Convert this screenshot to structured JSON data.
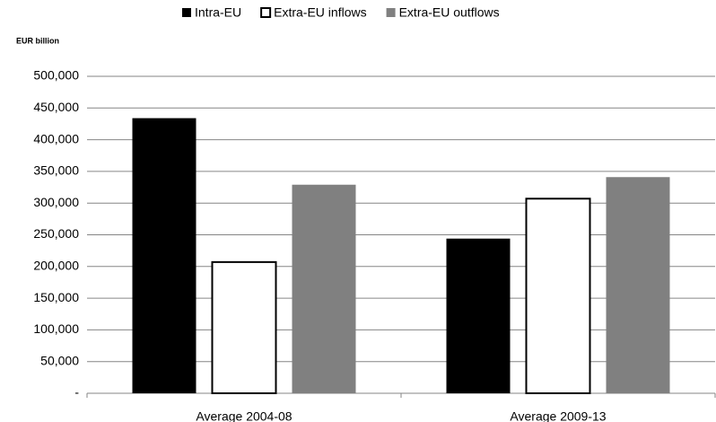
{
  "chart_data": {
    "type": "bar",
    "y_unit_label": "EUR billion",
    "categories": [
      "Average 2004-08",
      "Average 2009-13"
    ],
    "series": [
      {
        "name": "Intra-EU",
        "color": "#000000",
        "values": [
          434000,
          244000
        ]
      },
      {
        "name": "Extra-EU inflows",
        "color": "#ffffff",
        "values": [
          207000,
          307000
        ]
      },
      {
        "name": "Extra-EU outflows",
        "color": "#808080",
        "values": [
          329000,
          341000
        ]
      }
    ],
    "ylim": [
      0,
      500000
    ],
    "yticks": [
      {
        "value": 0,
        "label": "-"
      },
      {
        "value": 50000,
        "label": "50,000"
      },
      {
        "value": 100000,
        "label": "100,000"
      },
      {
        "value": 150000,
        "label": "150,000"
      },
      {
        "value": 200000,
        "label": "200,000"
      },
      {
        "value": 250000,
        "label": "250,000"
      },
      {
        "value": 300000,
        "label": "300,000"
      },
      {
        "value": 350000,
        "label": "350,000"
      },
      {
        "value": 400000,
        "label": "400,000"
      },
      {
        "value": 450000,
        "label": "450,000"
      },
      {
        "value": 500000,
        "label": "500,000"
      }
    ],
    "grid": true,
    "legend": "top"
  }
}
